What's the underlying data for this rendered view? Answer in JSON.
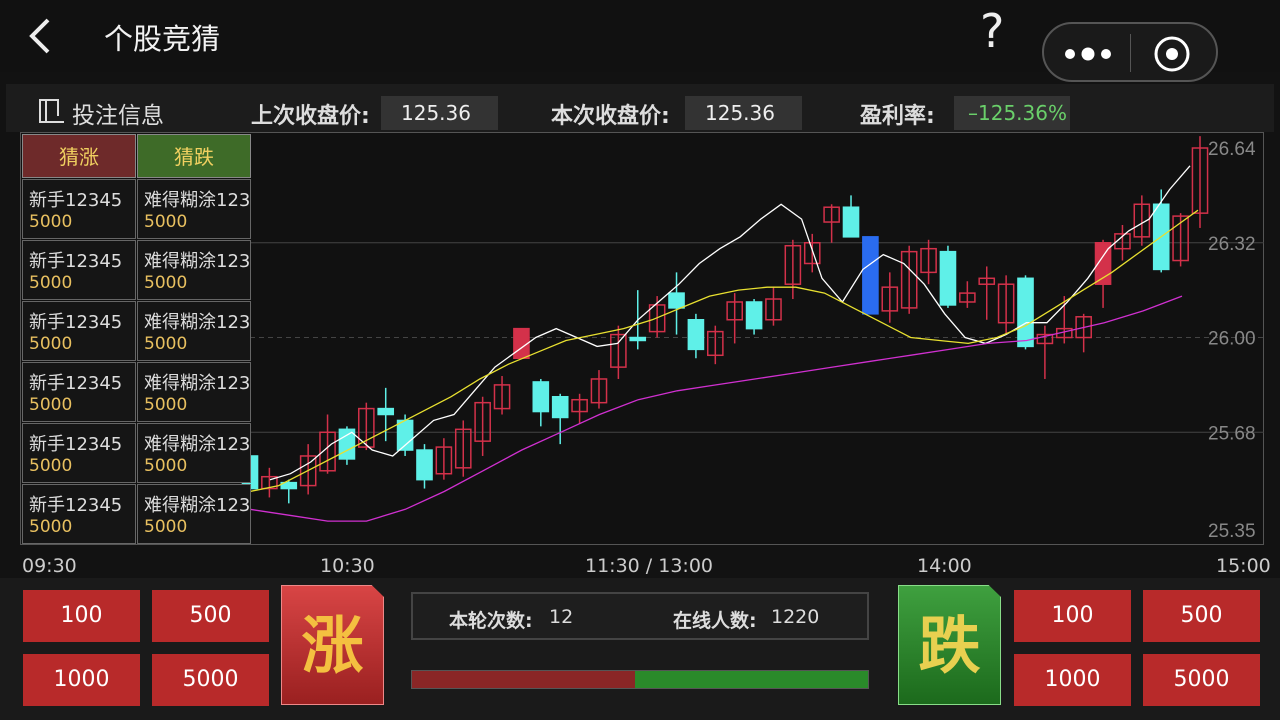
{
  "header": {
    "title": "个股竞猜",
    "help": "?"
  },
  "infobar": {
    "bet_info": "投注信息",
    "prev_close_label": "上次收盘价:",
    "prev_close_value": "125.36",
    "curr_close_label": "本次收盘价:",
    "curr_close_value": "125.36",
    "profit_label": "盈利率:",
    "profit_value": "–125.36%"
  },
  "table": {
    "head_up": "猜涨",
    "head_down": "猜跌",
    "rows": [
      {
        "up_name": "新手12345",
        "up_amt": "5000",
        "down_name": "难得糊涂123",
        "down_amt": "5000"
      },
      {
        "up_name": "新手12345",
        "up_amt": "5000",
        "down_name": "难得糊涂123",
        "down_amt": "5000"
      },
      {
        "up_name": "新手12345",
        "up_amt": "5000",
        "down_name": "难得糊涂123",
        "down_amt": "5000"
      },
      {
        "up_name": "新手12345",
        "up_amt": "5000",
        "down_name": "难得糊涂123",
        "down_amt": "5000"
      },
      {
        "up_name": "新手12345",
        "up_amt": "5000",
        "down_name": "难得糊涂123",
        "down_amt": "5000"
      },
      {
        "up_name": "新手12345",
        "up_amt": "5000",
        "down_name": "难得糊涂123",
        "down_amt": "5000"
      }
    ]
  },
  "chart_data": {
    "type": "candlestick",
    "y_ticks": [
      "26.64",
      "26.32",
      "26.00",
      "25.68",
      "25.35"
    ],
    "ylim": [
      25.35,
      26.64
    ],
    "x_ticks": [
      "09:30",
      "10:30",
      "11:30 / 13:00",
      "14:00",
      "15:00"
    ],
    "candles": [
      {
        "o": 25.6,
        "c": 25.49,
        "h": 25.63,
        "l": 25.45
      },
      {
        "o": 25.49,
        "c": 25.53,
        "h": 25.56,
        "l": 25.46
      },
      {
        "o": 25.51,
        "c": 25.49,
        "h": 25.52,
        "l": 25.44
      },
      {
        "o": 25.5,
        "c": 25.6,
        "h": 25.64,
        "l": 25.47
      },
      {
        "o": 25.55,
        "c": 25.68,
        "h": 25.74,
        "l": 25.54
      },
      {
        "o": 25.69,
        "c": 25.59,
        "h": 25.7,
        "l": 25.57
      },
      {
        "o": 25.63,
        "c": 25.76,
        "h": 25.78,
        "l": 25.62
      },
      {
        "o": 25.76,
        "c": 25.74,
        "h": 25.83,
        "l": 25.65
      },
      {
        "o": 25.72,
        "c": 25.62,
        "h": 25.74,
        "l": 25.6
      },
      {
        "o": 25.62,
        "c": 25.52,
        "h": 25.64,
        "l": 25.49
      },
      {
        "o": 25.54,
        "c": 25.63,
        "h": 25.66,
        "l": 25.52
      },
      {
        "o": 25.56,
        "c": 25.69,
        "h": 25.72,
        "l": 25.53
      },
      {
        "o": 25.65,
        "c": 25.78,
        "h": 25.8,
        "l": 25.6
      },
      {
        "o": 25.76,
        "c": 25.84,
        "h": 25.87,
        "l": 25.74
      },
      {
        "o": 25.93,
        "c": 26.03,
        "h": 26.03,
        "l": 25.93
      },
      {
        "o": 25.85,
        "c": 25.75,
        "h": 25.86,
        "l": 25.7
      },
      {
        "o": 25.8,
        "c": 25.73,
        "h": 25.81,
        "l": 25.64
      },
      {
        "o": 25.75,
        "c": 25.79,
        "h": 25.81,
        "l": 25.71
      },
      {
        "o": 25.78,
        "c": 25.86,
        "h": 25.89,
        "l": 25.76
      },
      {
        "o": 25.9,
        "c": 26.01,
        "h": 26.04,
        "l": 25.86
      },
      {
        "o": 26.0,
        "c": 25.99,
        "h": 26.16,
        "l": 25.96
      },
      {
        "o": 26.02,
        "c": 26.11,
        "h": 26.14,
        "l": 26.0
      },
      {
        "o": 26.15,
        "c": 26.1,
        "h": 26.22,
        "l": 26.01
      },
      {
        "o": 26.06,
        "c": 25.96,
        "h": 26.08,
        "l": 25.93
      },
      {
        "o": 25.94,
        "c": 26.02,
        "h": 26.04,
        "l": 25.91
      },
      {
        "o": 26.06,
        "c": 26.12,
        "h": 26.15,
        "l": 25.98
      },
      {
        "o": 26.12,
        "c": 26.03,
        "h": 26.13,
        "l": 26.01
      },
      {
        "o": 26.06,
        "c": 26.13,
        "h": 26.17,
        "l": 26.04
      },
      {
        "o": 26.18,
        "c": 26.31,
        "h": 26.33,
        "l": 26.13
      },
      {
        "o": 26.25,
        "c": 26.32,
        "h": 26.35,
        "l": 26.22
      },
      {
        "o": 26.39,
        "c": 26.44,
        "h": 26.45,
        "l": 26.32
      },
      {
        "o": 26.44,
        "c": 26.34,
        "h": 26.48,
        "l": 26.34
      },
      {
        "o": 26.34,
        "c": 26.08,
        "h": 26.34,
        "l": 26.08
      },
      {
        "o": 26.09,
        "c": 26.17,
        "h": 26.22,
        "l": 26.05
      },
      {
        "o": 26.1,
        "c": 26.29,
        "h": 26.31,
        "l": 26.08
      },
      {
        "o": 26.22,
        "c": 26.3,
        "h": 26.33,
        "l": 26.18
      },
      {
        "o": 26.29,
        "c": 26.11,
        "h": 26.31,
        "l": 26.1
      },
      {
        "o": 26.12,
        "c": 26.15,
        "h": 26.19,
        "l": 26.1
      },
      {
        "o": 26.18,
        "c": 26.2,
        "h": 26.24,
        "l": 26.06
      },
      {
        "o": 26.05,
        "c": 26.18,
        "h": 26.21,
        "l": 26.01
      },
      {
        "o": 26.2,
        "c": 25.97,
        "h": 26.21,
        "l": 25.96
      },
      {
        "o": 25.98,
        "c": 26.01,
        "h": 26.04,
        "l": 25.86
      },
      {
        "o": 26.0,
        "c": 26.03,
        "h": 26.14,
        "l": 25.98
      },
      {
        "o": 26.0,
        "c": 26.07,
        "h": 26.08,
        "l": 25.95
      },
      {
        "o": 26.18,
        "c": 26.32,
        "h": 26.33,
        "l": 26.1
      },
      {
        "o": 26.3,
        "c": 26.35,
        "h": 26.38,
        "l": 26.26
      },
      {
        "o": 26.34,
        "c": 26.45,
        "h": 26.48,
        "l": 26.31
      },
      {
        "o": 26.45,
        "c": 26.23,
        "h": 26.5,
        "l": 26.22
      },
      {
        "o": 26.26,
        "c": 26.41,
        "h": 26.42,
        "l": 26.24
      },
      {
        "o": 26.42,
        "c": 26.64,
        "h": 26.68,
        "l": 26.37
      }
    ],
    "ma_short": [
      25.52,
      25.54,
      25.58,
      25.64,
      25.68,
      25.62,
      25.6,
      25.66,
      25.72,
      25.74,
      25.82,
      25.9,
      25.95,
      26.0,
      26.03,
      26.0,
      25.97,
      25.98,
      26.06,
      26.12,
      26.18,
      26.25,
      26.3,
      26.34,
      26.4,
      26.45,
      26.4,
      26.2,
      26.12,
      26.23,
      26.28,
      26.25,
      26.18,
      26.08,
      26.0,
      25.98,
      26.01,
      26.05,
      26.05,
      26.12,
      26.2,
      26.3,
      26.36,
      26.4,
      26.5,
      26.58
    ],
    "ma_mid": [
      25.48,
      25.5,
      25.55,
      25.6,
      25.65,
      25.7,
      25.75,
      25.8,
      25.86,
      25.91,
      25.95,
      25.99,
      26.01,
      26.03,
      26.06,
      26.1,
      26.14,
      26.16,
      26.17,
      26.17,
      26.15,
      26.1,
      26.05,
      26.0,
      25.99,
      25.98,
      26.0,
      26.04,
      26.1,
      26.16,
      26.22,
      26.29,
      26.36,
      26.43
    ],
    "ma_long": [
      25.42,
      25.4,
      25.38,
      25.38,
      25.42,
      25.48,
      25.55,
      25.62,
      25.68,
      25.74,
      25.79,
      25.82,
      25.84,
      25.86,
      25.88,
      25.9,
      25.92,
      25.94,
      25.96,
      25.98,
      25.99,
      26.02,
      26.05,
      26.09,
      26.14
    ]
  },
  "controls": {
    "up_button": "涨",
    "down_button": "跌",
    "left_amounts": [
      "100",
      "500",
      "1000",
      "5000"
    ],
    "right_amounts": [
      "100",
      "500",
      "1000",
      "5000"
    ],
    "round_label": "本轮次数:",
    "round_value": "12",
    "online_label": "在线人数:",
    "online_value": "1220",
    "up_ratio": 0.49
  },
  "colors": {
    "up": "#d3314a",
    "down": "#5ff0e8",
    "down_deep": "#2a6cf0"
  }
}
